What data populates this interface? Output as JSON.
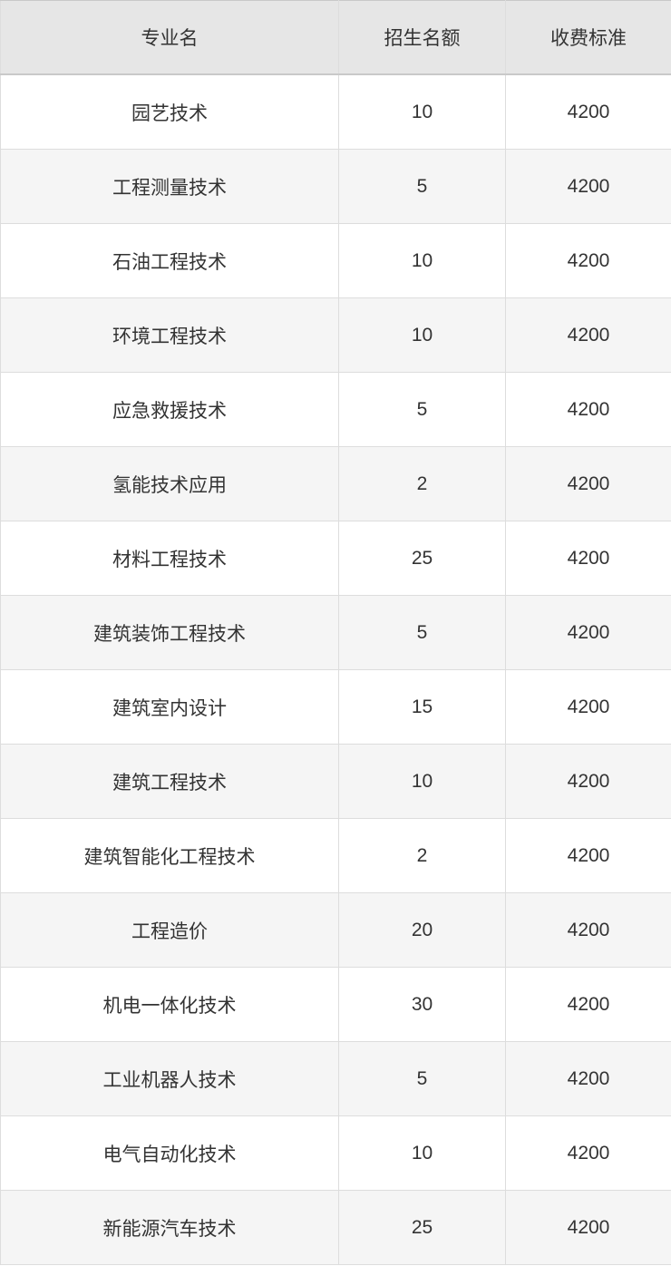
{
  "chart_data": {
    "type": "table",
    "columns": [
      "专业名",
      "招生名额",
      "收费标准"
    ],
    "rows": [
      [
        "园艺技术",
        "10",
        "4200"
      ],
      [
        "工程测量技术",
        "5",
        "4200"
      ],
      [
        "石油工程技术",
        "10",
        "4200"
      ],
      [
        "环境工程技术",
        "10",
        "4200"
      ],
      [
        "应急救援技术",
        "5",
        "4200"
      ],
      [
        "氢能技术应用",
        "2",
        "4200"
      ],
      [
        "材料工程技术",
        "25",
        "4200"
      ],
      [
        "建筑装饰工程技术",
        "5",
        "4200"
      ],
      [
        "建筑室内设计",
        "15",
        "4200"
      ],
      [
        "建筑工程技术",
        "10",
        "4200"
      ],
      [
        "建筑智能化工程技术",
        "2",
        "4200"
      ],
      [
        "工程造价",
        "20",
        "4200"
      ],
      [
        "机电一体化技术",
        "30",
        "4200"
      ],
      [
        "工业机器人技术",
        "5",
        "4200"
      ],
      [
        "电气自动化技术",
        "10",
        "4200"
      ],
      [
        "新能源汽车技术",
        "25",
        "4200"
      ]
    ],
    "layout": {
      "striped": true,
      "grid": true,
      "header_position": "top"
    }
  },
  "colors": {
    "header_bg": "#e6e6e6",
    "row_bg": "#ffffff",
    "row_alt_bg": "#f5f5f5",
    "border": "#dddddd",
    "header_border": "#c9c9c9",
    "text": "#333333"
  }
}
